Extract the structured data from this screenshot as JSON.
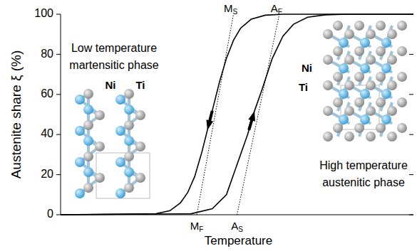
{
  "chart_data": {
    "type": "line",
    "ylabel": "Austenite share ξ (%)",
    "xlabel": "Temperature",
    "xlim": [
      0,
      100
    ],
    "ylim": [
      0,
      100
    ],
    "yticks": [
      0,
      20,
      40,
      60,
      80,
      100
    ],
    "tick_labels": "y",
    "grid": false,
    "series": [
      {
        "color": "#000000",
        "line_style": "solid",
        "x": [
          0,
          27,
          31,
          34,
          36,
          38,
          40,
          42,
          43,
          45,
          47,
          49,
          51,
          54,
          58,
          63,
          100
        ],
        "values": [
          0,
          0.5,
          2,
          6,
          11,
          19,
          31,
          45,
          52,
          66,
          78,
          87,
          93,
          97.5,
          99.5,
          100,
          100
        ]
      },
      {
        "color": "#000000",
        "line_style": "solid",
        "x": [
          0,
          37,
          43,
          47,
          50,
          53,
          55,
          57,
          60,
          63,
          66,
          70,
          75,
          81,
          100
        ],
        "values": [
          0,
          0.5,
          3,
          10,
          25,
          40,
          52,
          62,
          78,
          89,
          95,
          98.5,
          99.7,
          100,
          100
        ]
      }
    ],
    "tangents": [
      {
        "x": [
          38.6,
          49
        ],
        "y": [
          0,
          100
        ]
      },
      {
        "x": [
          50,
          62
        ],
        "y": [
          0,
          100
        ]
      }
    ],
    "annotations": [
      {
        "text": "M",
        "sub": "S",
        "x": 49,
        "y": 100
      },
      {
        "text": "A",
        "sub": "F",
        "x": 62,
        "y": 100
      },
      {
        "text": "M",
        "sub": "F",
        "x": 38.6,
        "y": 0
      },
      {
        "text": "A",
        "sub": "S",
        "x": 50,
        "y": 0
      }
    ],
    "phases": [
      {
        "title": [
          "Low temperature",
          "martensitic phase"
        ],
        "atoms": [
          "Ni",
          "Ti"
        ]
      },
      {
        "title": [
          "High temperature",
          "austenitic phase"
        ],
        "atoms": [
          "Ni",
          "Ti"
        ]
      }
    ]
  }
}
